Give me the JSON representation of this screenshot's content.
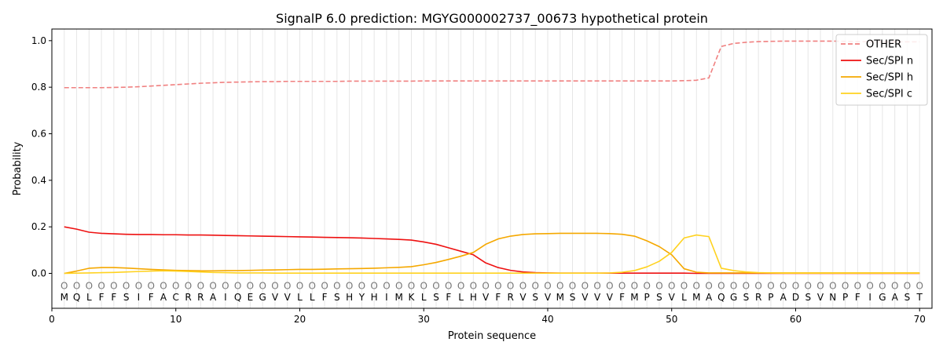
{
  "chart_data": {
    "type": "line",
    "title": "SignalP 6.0 prediction: MGYG000002737_00673 hypothetical protein",
    "xlabel": "Protein sequence",
    "ylabel": "Probability",
    "xlim": [
      0,
      71
    ],
    "ylim": [
      -0.15,
      1.05
    ],
    "x_ticks": [
      0,
      10,
      20,
      30,
      40,
      50,
      60,
      70
    ],
    "y_ticks": [
      0.0,
      0.2,
      0.4,
      0.6,
      0.8,
      1.0
    ],
    "grid": "vertical lines at each residue position",
    "legend_position": "top-right",
    "sequence": [
      "M",
      "Q",
      "L",
      "F",
      "F",
      "S",
      "I",
      "F",
      "A",
      "C",
      "R",
      "R",
      "A",
      "I",
      "Q",
      "E",
      "G",
      "V",
      "V",
      "L",
      "L",
      "F",
      "S",
      "H",
      "Y",
      "H",
      "I",
      "M",
      "K",
      "L",
      "S",
      "F",
      "L",
      "H",
      "V",
      "F",
      "R",
      "V",
      "S",
      "V",
      "M",
      "S",
      "V",
      "V",
      "V",
      "F",
      "M",
      "P",
      "S",
      "V",
      "L",
      "M",
      "A",
      "Q",
      "G",
      "S",
      "R",
      "P",
      "A",
      "D",
      "S",
      "V",
      "N",
      "P",
      "F",
      "I",
      "G",
      "A",
      "S",
      "T"
    ],
    "region_labels": [
      "O",
      "O",
      "O",
      "O",
      "O",
      "O",
      "O",
      "O",
      "O",
      "O",
      "O",
      "O",
      "O",
      "O",
      "O",
      "O",
      "O",
      "O",
      "O",
      "O",
      "O",
      "O",
      "O",
      "O",
      "O",
      "O",
      "O",
      "O",
      "O",
      "O",
      "O",
      "O",
      "O",
      "O",
      "O",
      "O",
      "O",
      "O",
      "O",
      "O",
      "O",
      "O",
      "O",
      "O",
      "O",
      "O",
      "O",
      "O",
      "O",
      "O",
      "O",
      "O",
      "O",
      "O",
      "O",
      "O",
      "O",
      "O",
      "O",
      "O",
      "O",
      "O",
      "O",
      "O",
      "O",
      "O",
      "O",
      "O",
      "O",
      "O"
    ],
    "x": [
      1,
      2,
      3,
      4,
      5,
      6,
      7,
      8,
      9,
      10,
      11,
      12,
      13,
      14,
      15,
      16,
      17,
      18,
      19,
      20,
      21,
      22,
      23,
      24,
      25,
      26,
      27,
      28,
      29,
      30,
      31,
      32,
      33,
      34,
      35,
      36,
      37,
      38,
      39,
      40,
      41,
      42,
      43,
      44,
      45,
      46,
      47,
      48,
      49,
      50,
      51,
      52,
      53,
      54,
      55,
      56,
      57,
      58,
      59,
      60,
      61,
      62,
      63,
      64,
      65,
      66,
      67,
      68,
      69,
      70
    ],
    "series": [
      {
        "name": "OTHER",
        "color": "#f08080",
        "dashed": true,
        "values": [
          0.798,
          0.798,
          0.798,
          0.798,
          0.799,
          0.8,
          0.802,
          0.805,
          0.808,
          0.811,
          0.814,
          0.817,
          0.819,
          0.821,
          0.822,
          0.823,
          0.824,
          0.824,
          0.825,
          0.825,
          0.825,
          0.825,
          0.825,
          0.826,
          0.826,
          0.826,
          0.826,
          0.826,
          0.826,
          0.827,
          0.827,
          0.827,
          0.827,
          0.827,
          0.827,
          0.827,
          0.827,
          0.827,
          0.827,
          0.827,
          0.827,
          0.827,
          0.827,
          0.827,
          0.827,
          0.827,
          0.827,
          0.827,
          0.827,
          0.827,
          0.828,
          0.83,
          0.84,
          0.975,
          0.988,
          0.993,
          0.996,
          0.997,
          0.998,
          0.998,
          0.998,
          0.998,
          0.998,
          0.997,
          0.996,
          0.995,
          0.995,
          0.995,
          0.995,
          0.995
        ]
      },
      {
        "name": "Sec/SPI n",
        "color": "#ee1111",
        "dashed": false,
        "values": [
          0.2,
          0.19,
          0.177,
          0.172,
          0.17,
          0.168,
          0.167,
          0.167,
          0.166,
          0.166,
          0.165,
          0.165,
          0.164,
          0.163,
          0.162,
          0.161,
          0.16,
          0.159,
          0.158,
          0.157,
          0.156,
          0.155,
          0.154,
          0.153,
          0.152,
          0.15,
          0.148,
          0.146,
          0.143,
          0.135,
          0.125,
          0.11,
          0.095,
          0.08,
          0.045,
          0.025,
          0.013,
          0.006,
          0.003,
          0.002,
          0.001,
          0.001,
          0.001,
          0.001,
          0.001,
          0.001,
          0.001,
          0.001,
          0.001,
          0.001,
          0.001,
          0.0,
          0.0,
          0.0,
          0.0,
          0.0,
          0.0,
          0.0,
          0.0,
          0.0,
          0.0,
          0.0,
          0.0,
          0.0,
          0.0,
          0.0,
          0.0,
          0.0,
          0.0,
          0.0
        ]
      },
      {
        "name": "Sec/SPI h",
        "color": "#f5a800",
        "dashed": false,
        "values": [
          0.0,
          0.01,
          0.022,
          0.025,
          0.025,
          0.023,
          0.02,
          0.017,
          0.015,
          0.013,
          0.012,
          0.011,
          0.011,
          0.012,
          0.012,
          0.013,
          0.014,
          0.015,
          0.016,
          0.017,
          0.017,
          0.018,
          0.019,
          0.02,
          0.021,
          0.022,
          0.024,
          0.026,
          0.029,
          0.037,
          0.047,
          0.06,
          0.074,
          0.09,
          0.125,
          0.148,
          0.16,
          0.167,
          0.17,
          0.171,
          0.172,
          0.172,
          0.172,
          0.172,
          0.171,
          0.168,
          0.16,
          0.14,
          0.115,
          0.08,
          0.02,
          0.005,
          0.002,
          0.002,
          0.002,
          0.002,
          0.002,
          0.002,
          0.002,
          0.002,
          0.002,
          0.002,
          0.002,
          0.002,
          0.002,
          0.002,
          0.002,
          0.002,
          0.002,
          0.002
        ]
      },
      {
        "name": "Sec/SPI c",
        "color": "#ffd21f",
        "dashed": false,
        "values": [
          0.0,
          0.001,
          0.002,
          0.003,
          0.004,
          0.006,
          0.008,
          0.01,
          0.011,
          0.01,
          0.008,
          0.006,
          0.004,
          0.003,
          0.002,
          0.002,
          0.002,
          0.001,
          0.001,
          0.001,
          0.001,
          0.001,
          0.001,
          0.001,
          0.001,
          0.001,
          0.001,
          0.001,
          0.001,
          0.001,
          0.001,
          0.001,
          0.001,
          0.001,
          0.001,
          0.001,
          0.001,
          0.001,
          0.001,
          0.001,
          0.001,
          0.001,
          0.001,
          0.001,
          0.002,
          0.005,
          0.012,
          0.028,
          0.052,
          0.09,
          0.152,
          0.165,
          0.158,
          0.022,
          0.012,
          0.006,
          0.003,
          0.002,
          0.001,
          0.001,
          0.001,
          0.001,
          0.001,
          0.001,
          0.001,
          0.001,
          0.001,
          0.001,
          0.001,
          0.001
        ]
      }
    ]
  }
}
